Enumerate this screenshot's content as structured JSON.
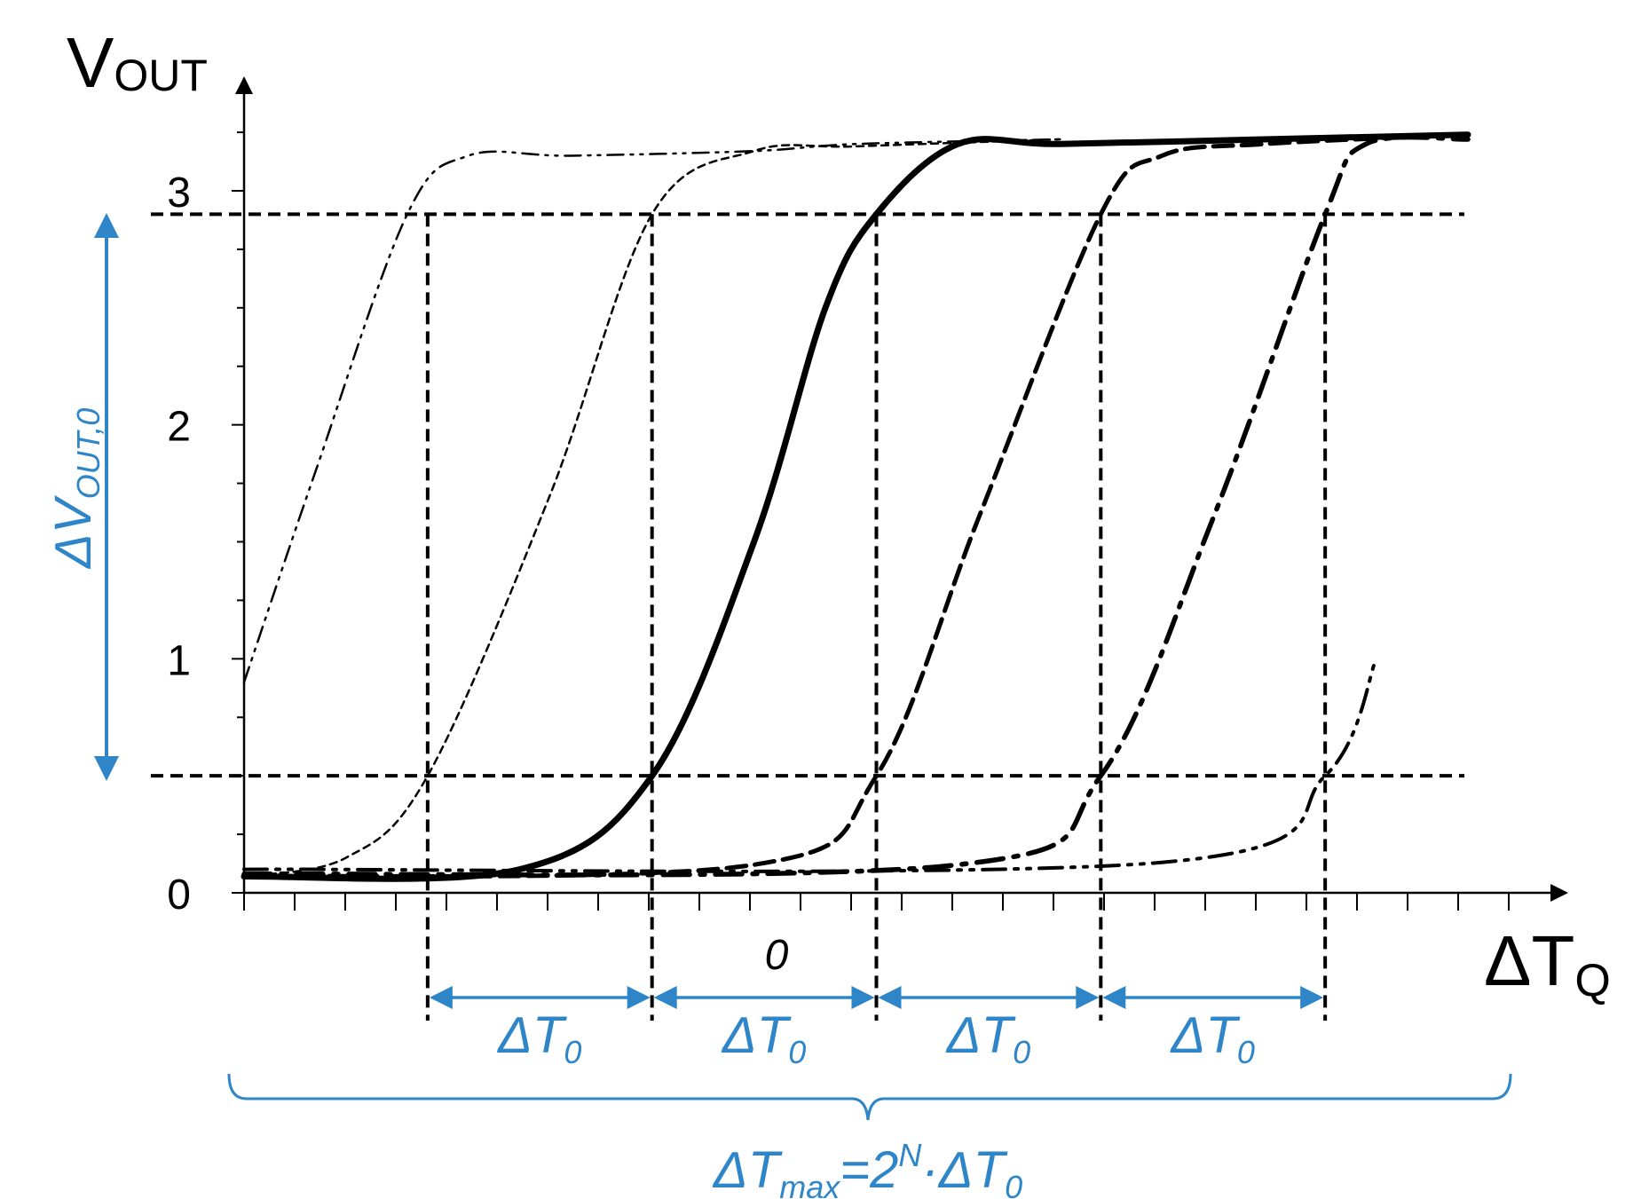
{
  "chart_data": {
    "type": "line",
    "title": "",
    "ylabel_main": "V",
    "ylabel_sub": "OUT",
    "xlabel_main": "ΔT",
    "xlabel_sub": "Q",
    "ylim": [
      0,
      3.3
    ],
    "y_ticks": [
      0,
      1,
      2,
      3
    ],
    "x_zero_label": "0",
    "x_range": [
      -4.0,
      8.4
    ],
    "x_minor_ticks": 25,
    "threshold_high": 2.9,
    "threshold_low": 0.5,
    "crossing_x": [
      -2.2,
      0,
      2.2,
      4.4,
      6.6
    ],
    "series": [
      {
        "style": "dash-dot-dot-thin",
        "x": [
          -4.0,
          -3.3,
          -2.4,
          -1.8,
          -0.8,
          1.0,
          2.0,
          4.0
        ],
        "y": [
          0.9,
          1.8,
          2.9,
          3.15,
          3.15,
          3.17,
          3.2,
          3.22
        ]
      },
      {
        "style": "dashed-thin",
        "x": [
          -4.0,
          -3.0,
          -2.2,
          -1.0,
          0.0,
          1.0,
          2.0,
          4.0
        ],
        "y": [
          0.07,
          0.15,
          0.5,
          1.7,
          2.9,
          3.17,
          3.19,
          3.22
        ]
      },
      {
        "style": "solid-bold",
        "x": [
          -4.0,
          -1.3,
          0.0,
          1.0,
          1.7,
          2.2,
          3.0,
          4.0,
          6.0,
          8.0
        ],
        "y": [
          0.07,
          0.1,
          0.5,
          1.5,
          2.5,
          2.9,
          3.2,
          3.2,
          3.22,
          3.24
        ]
      },
      {
        "style": "dashed-bold",
        "x": [
          -4.0,
          1.0,
          2.2,
          3.2,
          4.4,
          5.0,
          6.0,
          8.0
        ],
        "y": [
          0.07,
          0.12,
          0.5,
          1.6,
          2.9,
          3.15,
          3.2,
          3.24
        ]
      },
      {
        "style": "dash-dot-bold",
        "x": [
          -4.0,
          3.0,
          4.4,
          5.5,
          6.6,
          7.0,
          8.0
        ],
        "y": [
          0.08,
          0.12,
          0.5,
          1.6,
          2.9,
          3.2,
          3.22
        ]
      },
      {
        "style": "dash-dot-dot-bold",
        "x": [
          -4.0,
          5.0,
          6.6,
          7.1
        ],
        "y": [
          0.1,
          0.13,
          0.5,
          1.0
        ]
      }
    ]
  },
  "annotations": {
    "delta_v_label": "ΔV",
    "delta_v_sub": "OUT,0",
    "delta_t_label": "ΔT",
    "delta_t_sub": "0",
    "delta_t_max_main": "ΔT",
    "delta_t_max_sub": "max",
    "delta_t_max_eq": "=2",
    "delta_t_max_sup": "N",
    "delta_t_max_tail": "·ΔT",
    "delta_t_max_tail_sub": "0"
  }
}
